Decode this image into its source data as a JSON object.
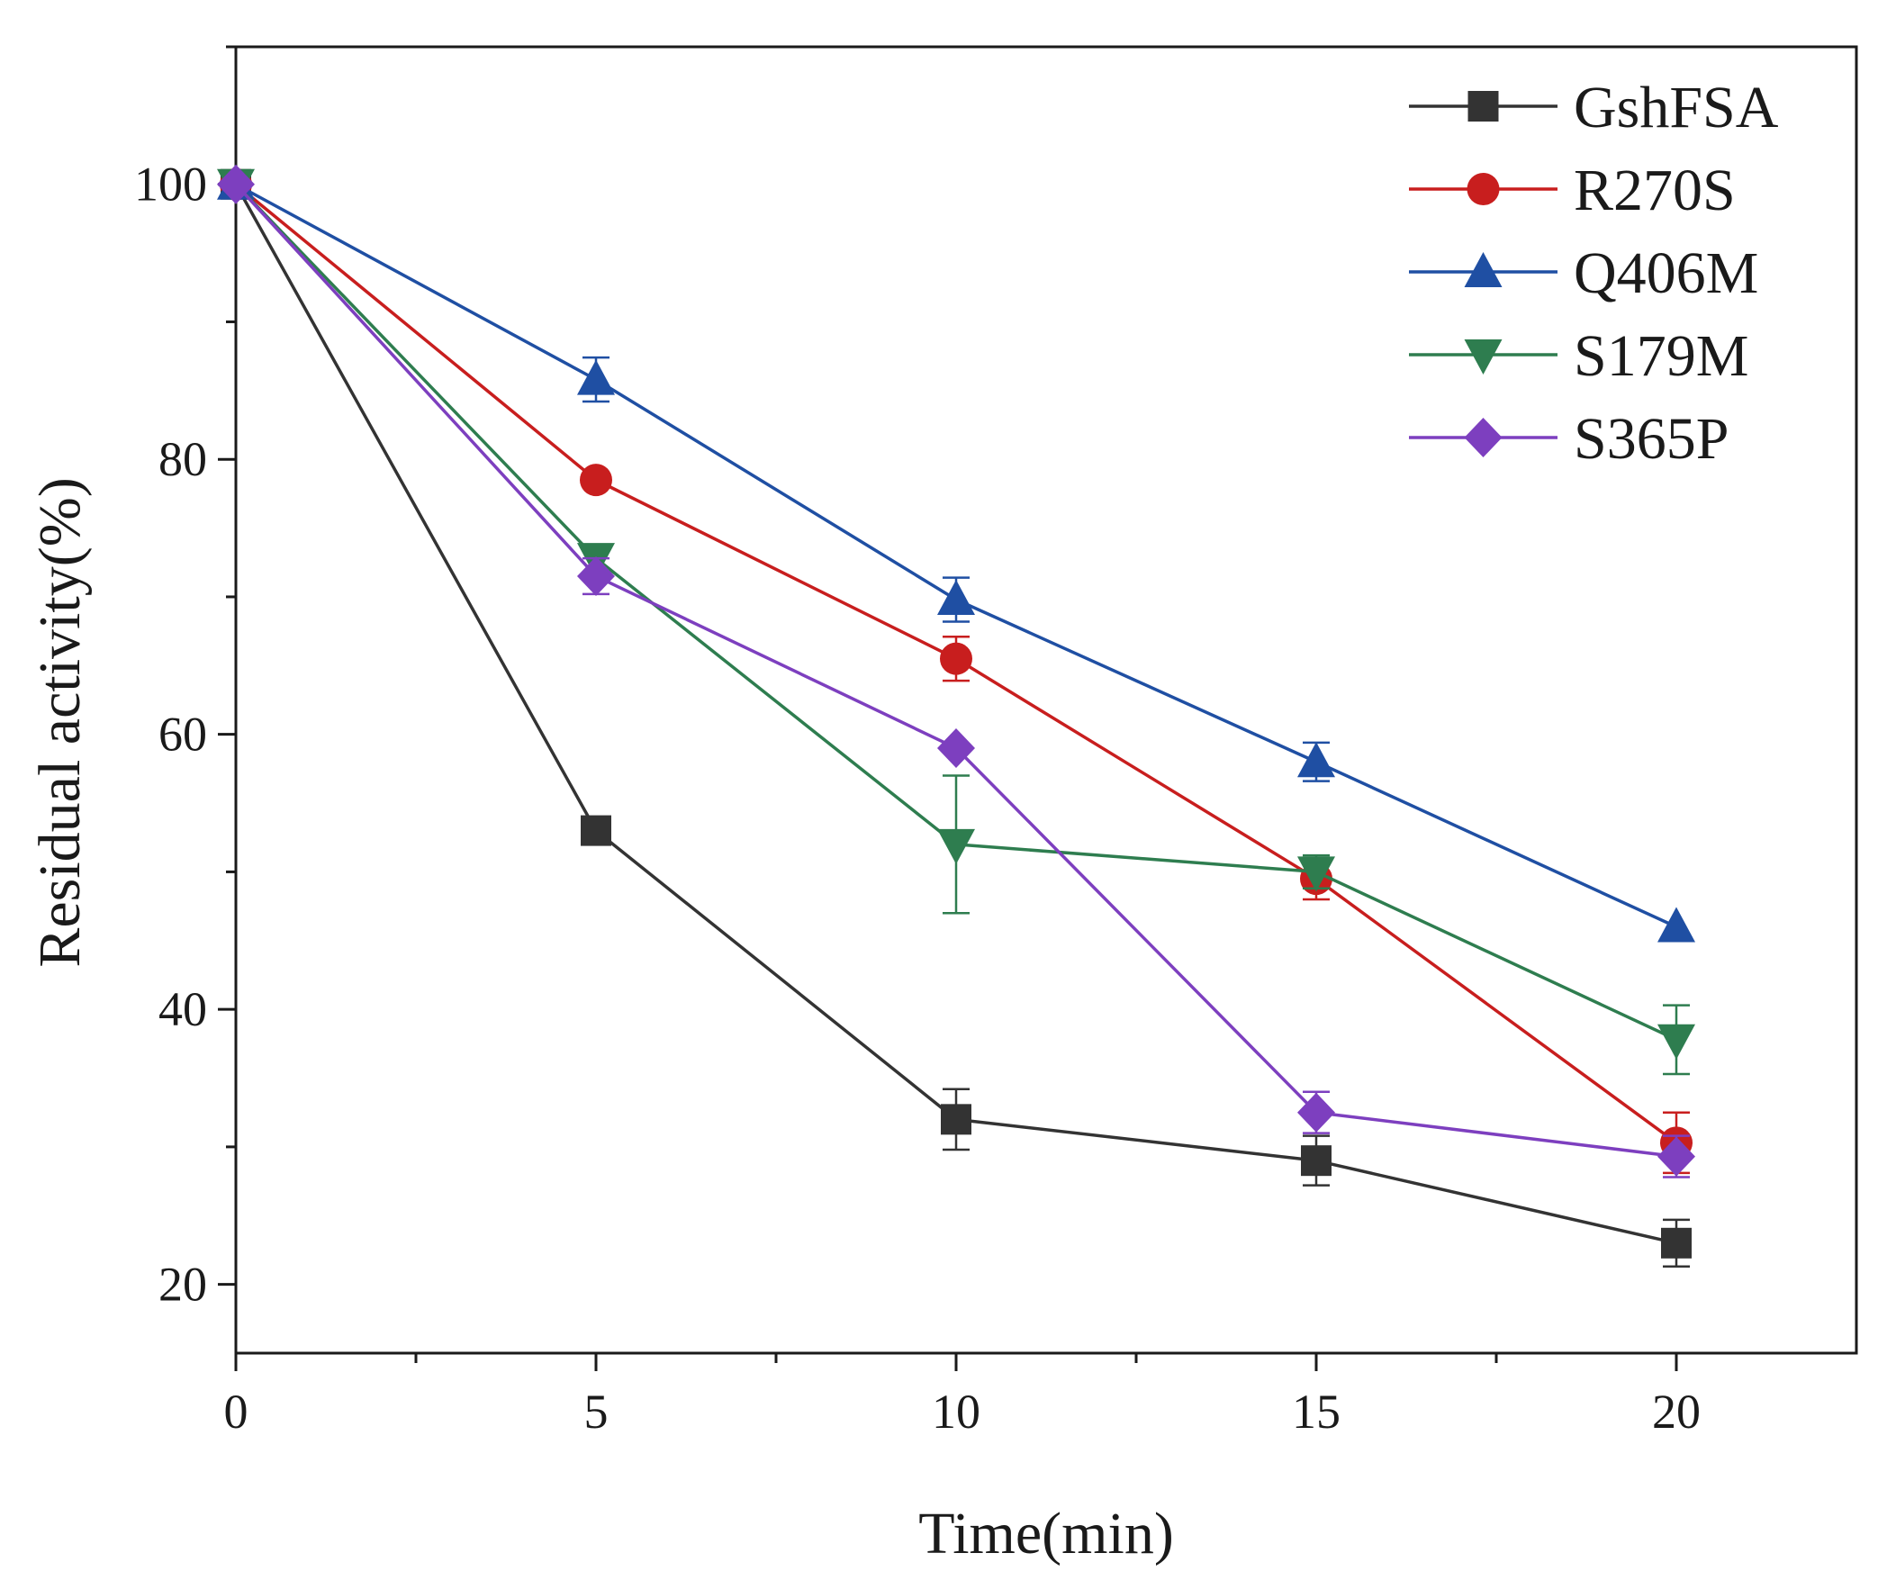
{
  "chart_data": {
    "type": "line",
    "xlabel": "Time(min)",
    "ylabel": "Residual activity(%)",
    "xlim": [
      0,
      22.5
    ],
    "ylim": [
      15,
      110
    ],
    "xticks": [
      0,
      5,
      10,
      15,
      20
    ],
    "yticks": [
      20,
      40,
      60,
      80,
      100
    ],
    "x": [
      0,
      5,
      10,
      15,
      20
    ],
    "legend": "top-right",
    "grid": false,
    "series": [
      {
        "name": "GshFSA",
        "color": "#333333",
        "marker": "square",
        "values": [
          100,
          53,
          32,
          29,
          23
        ],
        "errors": [
          0,
          0,
          2.2,
          1.8,
          1.7
        ]
      },
      {
        "name": "R270S",
        "color": "#c81e1e",
        "marker": "circle",
        "values": [
          100,
          78.5,
          65.5,
          49.5,
          30.3
        ],
        "errors": [
          0,
          0,
          1.6,
          1.5,
          2.2
        ]
      },
      {
        "name": "Q406M",
        "color": "#1f4fa3",
        "marker": "triangle-up",
        "values": [
          100,
          85.8,
          69.8,
          58,
          46
        ],
        "errors": [
          0,
          1.6,
          1.6,
          1.4,
          0
        ]
      },
      {
        "name": "S179M",
        "color": "#2e7d4f",
        "marker": "triangle-down",
        "values": [
          100,
          72.8,
          52,
          50,
          37.8
        ],
        "errors": [
          0,
          0,
          5,
          1.2,
          2.5
        ]
      },
      {
        "name": "S365P",
        "color": "#7d3fbf",
        "marker": "diamond",
        "values": [
          100,
          71.5,
          59,
          32.5,
          29.3
        ],
        "errors": [
          0,
          1.3,
          0,
          1.5,
          1.5
        ]
      }
    ]
  }
}
